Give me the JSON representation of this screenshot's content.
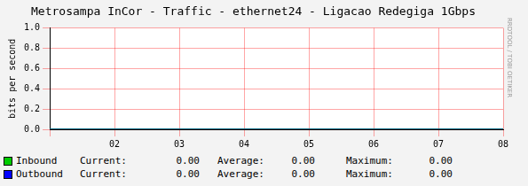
{
  "chart_data": {
    "type": "line",
    "title": "Metrosampa InCor - Traffic - ethernet24 - Ligacao Redegiga 1Gbps",
    "y_label": "bits per second",
    "side_text": "RRDTOOL / TOBI OETIKER",
    "categories": [
      null,
      "02",
      "03",
      "04",
      "05",
      "06",
      "07",
      "08"
    ],
    "series": [
      {
        "name": "Inbound",
        "color": "#00cc00",
        "type": "area",
        "values": [
          0,
          0,
          0,
          0,
          0,
          0,
          0,
          0
        ],
        "stats": [
          {
            "value": 0,
            "label": "0.00"
          },
          {
            "value": 0,
            "label": "0.00"
          },
          {
            "value": 0,
            "label": "0.00"
          }
        ]
      },
      {
        "name": "Outbound",
        "color": "#0000ff",
        "type": "line",
        "values": [
          0,
          0,
          0,
          0,
          0,
          0,
          0,
          0
        ],
        "stats": [
          {
            "value": 0,
            "label": "0.00"
          },
          {
            "value": 0,
            "label": "0.00"
          },
          {
            "value": 0,
            "label": "0.00"
          }
        ]
      }
    ],
    "stat_labels": [
      "Current:",
      "Average:",
      "Maximum:"
    ],
    "ylim": [
      0,
      1
    ],
    "yticks": [
      {
        "value": 0,
        "label": "0.0"
      },
      {
        "value": 0.2,
        "label": "0.2"
      },
      {
        "value": 0.4,
        "label": "0.4"
      },
      {
        "value": 0.6,
        "label": "0.6"
      },
      {
        "value": 0.8,
        "label": "0.8"
      },
      {
        "value": 1,
        "label": "1.0"
      }
    ],
    "grid": true
  }
}
